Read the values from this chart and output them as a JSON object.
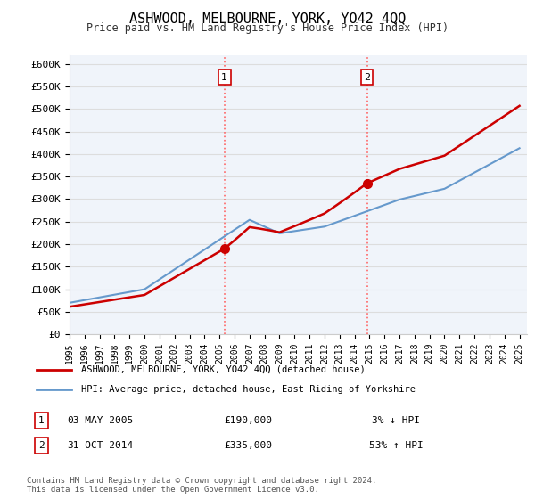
{
  "title": "ASHWOOD, MELBOURNE, YORK, YO42 4QQ",
  "subtitle": "Price paid vs. HM Land Registry's House Price Index (HPI)",
  "ylabel_ticks": [
    "£0",
    "£50K",
    "£100K",
    "£150K",
    "£200K",
    "£250K",
    "£300K",
    "£350K",
    "£400K",
    "£450K",
    "£500K",
    "£550K",
    "£600K"
  ],
  "ytick_values": [
    0,
    50000,
    100000,
    150000,
    200000,
    250000,
    300000,
    350000,
    400000,
    450000,
    500000,
    550000,
    600000
  ],
  "ylim": [
    0,
    620000
  ],
  "x_start_year": 1995,
  "x_end_year": 2025,
  "line1_color": "#cc0000",
  "line2_color": "#6699cc",
  "marker1_color": "#cc0000",
  "marker2_color": "#cc0000",
  "sale1_year": 2005.33,
  "sale1_price": 190000,
  "sale2_year": 2014.83,
  "sale2_price": 335000,
  "vline_color": "#ff6666",
  "vline_style": ":",
  "annotation1_label": "1",
  "annotation2_label": "2",
  "legend_line1": "ASHWOOD, MELBOURNE, YORK, YO42 4QQ (detached house)",
  "legend_line2": "HPI: Average price, detached house, East Riding of Yorkshire",
  "table_row1": [
    "1",
    "03-MAY-2005",
    "£190,000",
    "3% ↓ HPI"
  ],
  "table_row2": [
    "2",
    "31-OCT-2014",
    "£335,000",
    "53% ↑ HPI"
  ],
  "footer": "Contains HM Land Registry data © Crown copyright and database right 2024.\nThis data is licensed under the Open Government Licence v3.0.",
  "bg_color": "#ffffff",
  "grid_color": "#dddddd",
  "chart_bg": "#f0f4fa"
}
